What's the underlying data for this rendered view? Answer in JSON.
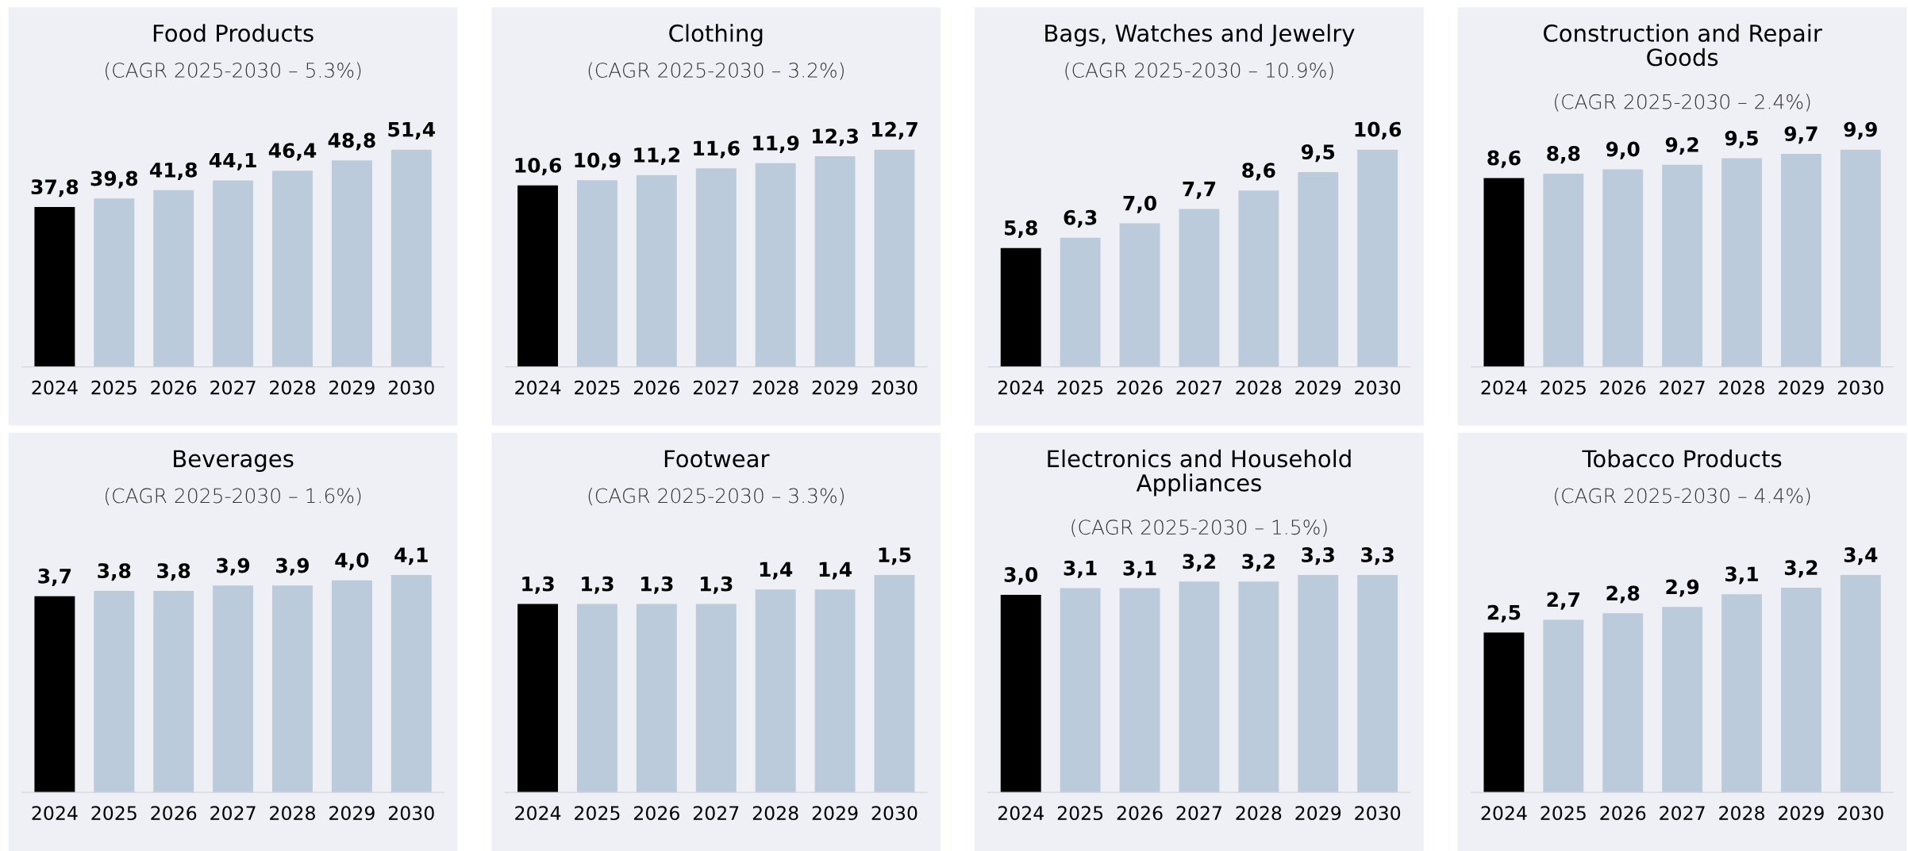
{
  "chart_data": [
    {
      "type": "bar",
      "title": "Food Products",
      "subtitle": "(CAGR 2025-2030 – 5.3%)",
      "categories": [
        "2024",
        "2025",
        "2026",
        "2027",
        "2028",
        "2029",
        "2030"
      ],
      "values": [
        37.8,
        39.8,
        41.8,
        44.1,
        46.4,
        48.8,
        51.4
      ],
      "value_labels": [
        "37,8",
        "39,8",
        "41,8",
        "44,1",
        "46,4",
        "48,8",
        "51,4"
      ],
      "colors": [
        "#000000",
        "#bccbdb",
        "#bccbdb",
        "#bccbdb",
        "#bccbdb",
        "#bccbdb",
        "#bccbdb"
      ],
      "tick_labels": "x"
    },
    {
      "type": "bar",
      "title": "Clothing",
      "subtitle": "(CAGR 2025-2030 – 3.2%)",
      "categories": [
        "2024",
        "2025",
        "2026",
        "2027",
        "2028",
        "2029",
        "2030"
      ],
      "values": [
        10.6,
        10.9,
        11.2,
        11.6,
        11.9,
        12.3,
        12.7
      ],
      "value_labels": [
        "10,6",
        "10,9",
        "11,2",
        "11,6",
        "11,9",
        "12,3",
        "12,7"
      ],
      "colors": [
        "#000000",
        "#bccbdb",
        "#bccbdb",
        "#bccbdb",
        "#bccbdb",
        "#bccbdb",
        "#bccbdb"
      ],
      "tick_labels": "x"
    },
    {
      "type": "bar",
      "title": "Bags, Watches and Jewelry",
      "subtitle": "(CAGR 2025-2030 – 10.9%)",
      "categories": [
        "2024",
        "2025",
        "2026",
        "2027",
        "2028",
        "2029",
        "2030"
      ],
      "values": [
        5.8,
        6.3,
        7.0,
        7.7,
        8.6,
        9.5,
        10.6
      ],
      "value_labels": [
        "5,8",
        "6,3",
        "7,0",
        "7,7",
        "8,6",
        "9,5",
        "10,6"
      ],
      "colors": [
        "#000000",
        "#bccbdb",
        "#bccbdb",
        "#bccbdb",
        "#bccbdb",
        "#bccbdb",
        "#bccbdb"
      ],
      "tick_labels": "x"
    },
    {
      "type": "bar",
      "title": "Construction and Repair\nGoods",
      "subtitle": "(CAGR 2025-2030 – 2.4%)",
      "categories": [
        "2024",
        "2025",
        "2026",
        "2027",
        "2028",
        "2029",
        "2030"
      ],
      "values": [
        8.6,
        8.8,
        9.0,
        9.2,
        9.5,
        9.7,
        9.9
      ],
      "value_labels": [
        "8,6",
        "8,8",
        "9,0",
        "9,2",
        "9,5",
        "9,7",
        "9,9"
      ],
      "colors": [
        "#000000",
        "#bccbdb",
        "#bccbdb",
        "#bccbdb",
        "#bccbdb",
        "#bccbdb",
        "#bccbdb"
      ],
      "tick_labels": "x"
    },
    {
      "type": "bar",
      "title": "Beverages",
      "subtitle": "(CAGR 2025-2030 – 1.6%)",
      "categories": [
        "2024",
        "2025",
        "2026",
        "2027",
        "2028",
        "2029",
        "2030"
      ],
      "values": [
        3.7,
        3.8,
        3.8,
        3.9,
        3.9,
        4.0,
        4.1
      ],
      "value_labels": [
        "3,7",
        "3,8",
        "3,8",
        "3,9",
        "3,9",
        "4,0",
        "4,1"
      ],
      "colors": [
        "#000000",
        "#bccbdb",
        "#bccbdb",
        "#bccbdb",
        "#bccbdb",
        "#bccbdb",
        "#bccbdb"
      ],
      "tick_labels": "x"
    },
    {
      "type": "bar",
      "title": "Footwear",
      "subtitle": "(CAGR 2025-2030 – 3.3%)",
      "categories": [
        "2024",
        "2025",
        "2026",
        "2027",
        "2028",
        "2029",
        "2030"
      ],
      "values": [
        1.3,
        1.3,
        1.3,
        1.3,
        1.4,
        1.4,
        1.5
      ],
      "value_labels": [
        "1,3",
        "1,3",
        "1,3",
        "1,3",
        "1,4",
        "1,4",
        "1,5"
      ],
      "colors": [
        "#000000",
        "#bccbdb",
        "#bccbdb",
        "#bccbdb",
        "#bccbdb",
        "#bccbdb",
        "#bccbdb"
      ],
      "tick_labels": "x"
    },
    {
      "type": "bar",
      "title": "Electronics and Household\nAppliances",
      "subtitle": "(CAGR 2025-2030 – 1.5%)",
      "categories": [
        "2024",
        "2025",
        "2026",
        "2027",
        "2028",
        "2029",
        "2030"
      ],
      "values": [
        3.0,
        3.1,
        3.1,
        3.2,
        3.2,
        3.3,
        3.3
      ],
      "value_labels": [
        "3,0",
        "3,1",
        "3,1",
        "3,2",
        "3,2",
        "3,3",
        "3,3"
      ],
      "colors": [
        "#000000",
        "#bccbdb",
        "#bccbdb",
        "#bccbdb",
        "#bccbdb",
        "#bccbdb",
        "#bccbdb"
      ],
      "tick_labels": "x"
    },
    {
      "type": "bar",
      "title": "Tobacco Products",
      "subtitle": "(CAGR 2025-2030 – 4.4%)",
      "categories": [
        "2024",
        "2025",
        "2026",
        "2027",
        "2028",
        "2029",
        "2030"
      ],
      "values": [
        2.5,
        2.7,
        2.8,
        2.9,
        3.1,
        3.2,
        3.4
      ],
      "value_labels": [
        "2,5",
        "2,7",
        "2,8",
        "2,9",
        "3,1",
        "3,2",
        "3,4"
      ],
      "colors": [
        "#000000",
        "#bccbdb",
        "#bccbdb",
        "#bccbdb",
        "#bccbdb",
        "#bccbdb",
        "#bccbdb"
      ],
      "tick_labels": "x"
    }
  ]
}
